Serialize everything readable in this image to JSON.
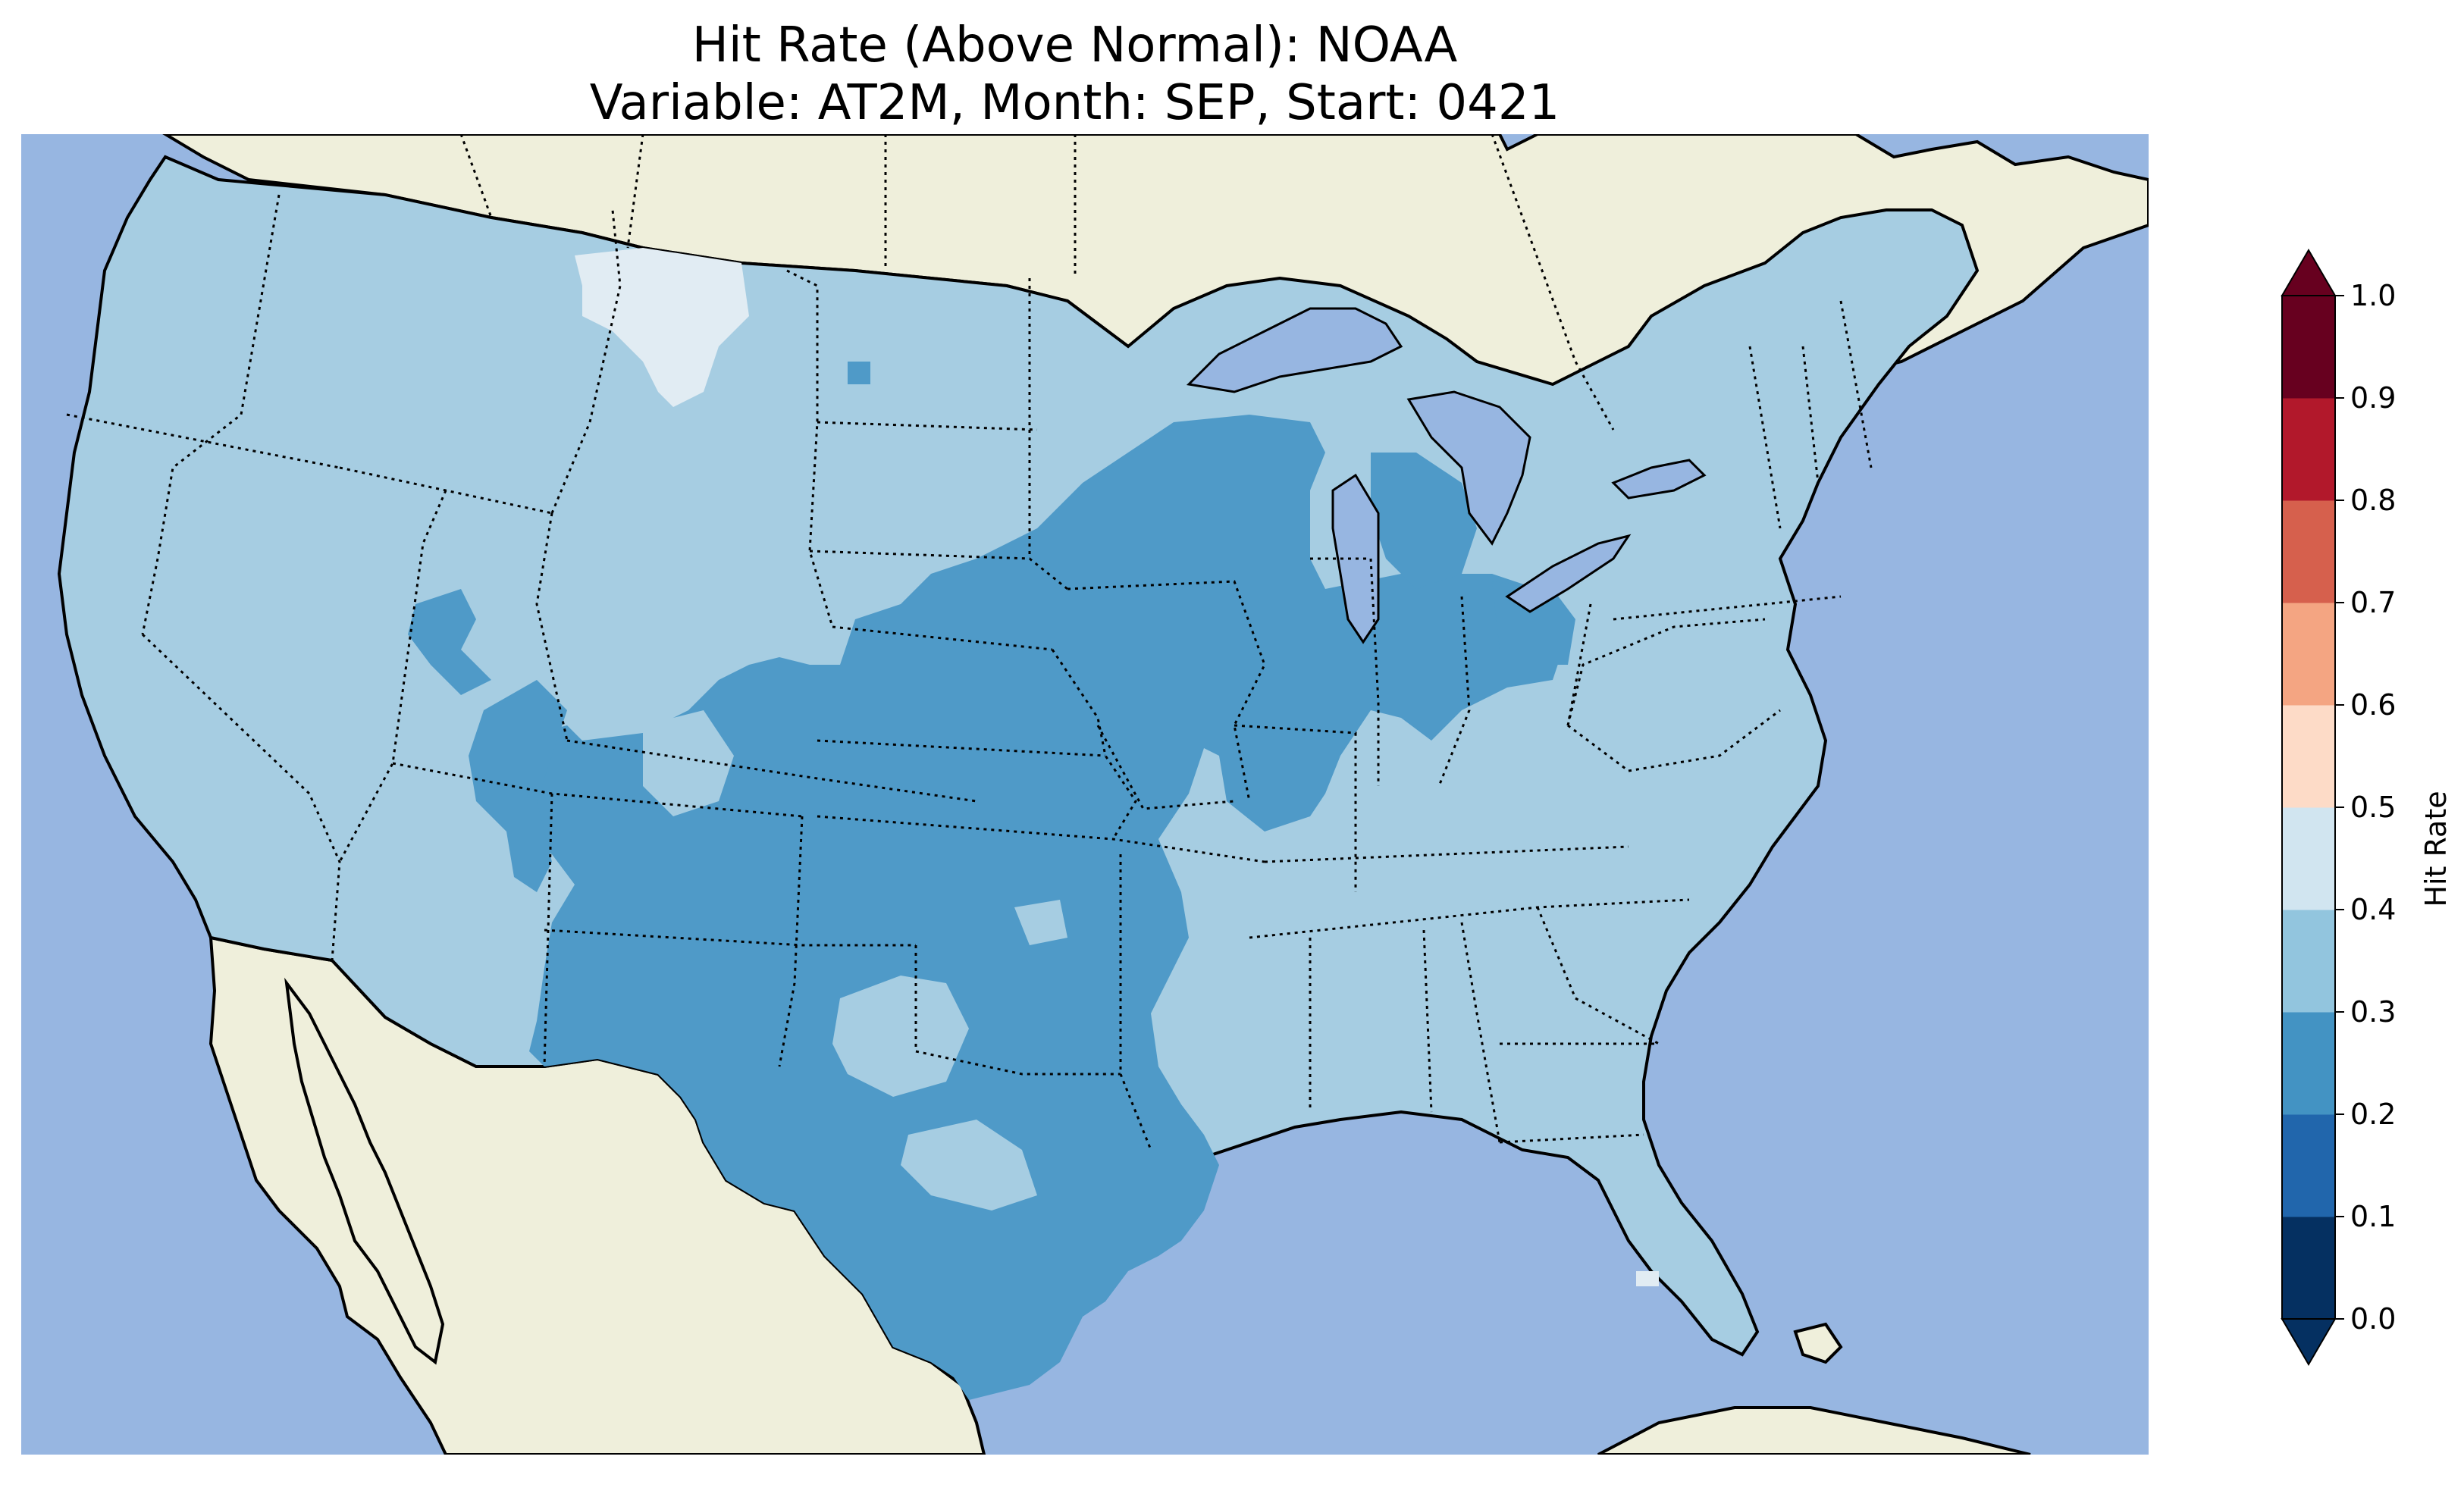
{
  "title": {
    "line1": "Hit Rate (Above Normal): NOAA",
    "line2": "Variable: AT2M, Month: SEP, Start: 0421"
  },
  "colors": {
    "ocean": "#97b6e1",
    "land": "#efefdb",
    "lakes": "#97b6e1"
  },
  "colorbar": {
    "label": "Hit Rate",
    "ticks": [
      "0.0",
      "0.1",
      "0.2",
      "0.3",
      "0.4",
      "0.5",
      "0.6",
      "0.7",
      "0.8",
      "0.9",
      "1.0"
    ],
    "bins": [
      {
        "range": "0.0-0.1",
        "color": "#053061"
      },
      {
        "range": "0.1-0.2",
        "color": "#2166ac"
      },
      {
        "range": "0.2-0.3",
        "color": "#4393c3"
      },
      {
        "range": "0.3-0.4",
        "color": "#92c5de"
      },
      {
        "range": "0.4-0.5",
        "color": "#d1e5f0"
      },
      {
        "range": "0.5-0.6",
        "color": "#fddbc7"
      },
      {
        "range": "0.6-0.7",
        "color": "#f4a582"
      },
      {
        "range": "0.7-0.8",
        "color": "#d6604d"
      },
      {
        "range": "0.8-0.9",
        "color": "#b2182b"
      },
      {
        "range": "0.9-1.0",
        "color": "#67001f"
      }
    ],
    "extend": "both"
  },
  "map_layers": {
    "conus_bin": "0.3-0.4",
    "conus_color": "#a6cde2",
    "region_0_2_0_3_color": "#4f9ac8",
    "region_0_4_0_5_color": "#e1ecf3"
  }
}
